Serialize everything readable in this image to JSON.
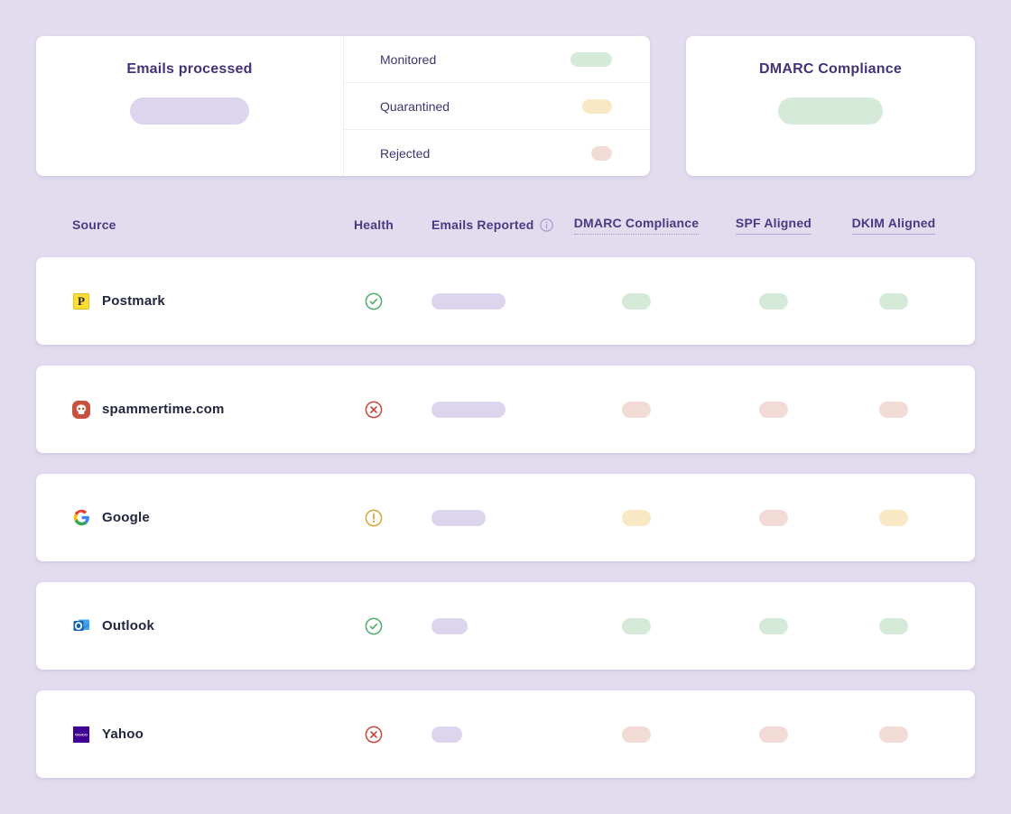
{
  "colors": {
    "page-bg": "#e2dcee",
    "status-green": "#d5ead9",
    "status-yellow": "#f8e9c4",
    "status-red": "#f3dbd6",
    "metric-lavender": "#dcd5ed",
    "accent-text": "#42317b",
    "health-pass": "#4cae6f",
    "health-warn": "#dfa32f",
    "health-fail": "#c9473a"
  },
  "summary_cards": {
    "emails_processed": {
      "title": "Emails processed",
      "legend": [
        {
          "label": "Monitored",
          "status": "green",
          "pill_width": 46
        },
        {
          "label": "Quarantined",
          "status": "yellow",
          "pill_width": 33
        },
        {
          "label": "Rejected",
          "status": "red",
          "pill_width": 23
        }
      ]
    },
    "dmarc_compliance": {
      "title": "DMARC Compliance"
    }
  },
  "table": {
    "headers": {
      "source": "Source",
      "health": "Health",
      "emails_reported": "Emails Reported",
      "dmarc_compliance": "DMARC Compliance",
      "spf_aligned": "SPF Aligned",
      "dkim_aligned": "DKIM Aligned"
    },
    "rows": [
      {
        "source": "Postmark",
        "health": "pass",
        "emails_width": 82,
        "dmarc": "green",
        "spf": "green",
        "dkim": "green"
      },
      {
        "source": "spammertime.com",
        "health": "fail",
        "emails_width": 82,
        "dmarc": "red",
        "spf": "red",
        "dkim": "red"
      },
      {
        "source": "Google",
        "health": "warn",
        "emails_width": 60,
        "dmarc": "yellow",
        "spf": "red",
        "dkim": "yellow"
      },
      {
        "source": "Outlook",
        "health": "pass",
        "emails_width": 40,
        "dmarc": "green",
        "spf": "green",
        "dkim": "green"
      },
      {
        "source": "Yahoo",
        "health": "fail",
        "emails_width": 34,
        "dmarc": "red",
        "spf": "red",
        "dkim": "red"
      }
    ]
  },
  "icons": {
    "emails_reported_info": "info-circle-icon",
    "health_pass": "check-circle-icon",
    "health_warn": "warning-circle-icon",
    "health_fail": "x-circle-icon",
    "row_logos": [
      "postmark-logo-icon",
      "spammertime-skull-icon",
      "google-g-icon",
      "outlook-logo-icon",
      "yahoo-logo-icon"
    ]
  }
}
